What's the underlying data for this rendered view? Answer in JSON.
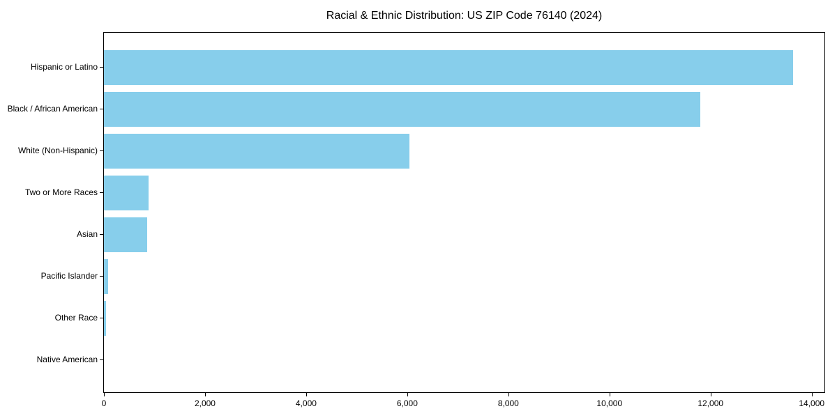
{
  "chart_data": {
    "type": "bar",
    "orientation": "horizontal",
    "title": "Racial & Ethnic Distribution: US ZIP Code 76140 (2024)",
    "categories": [
      "Hispanic or Latino",
      "Black / African American",
      "White (Non-Hispanic)",
      "Two or More Races",
      "Asian",
      "Pacific Islander",
      "Other Race",
      "Native American"
    ],
    "values": [
      13630,
      11790,
      6050,
      880,
      850,
      80,
      45,
      0
    ],
    "xlabel": "",
    "ylabel": "",
    "xlim": [
      0,
      14280
    ],
    "x_ticks": [
      0,
      2000,
      4000,
      6000,
      8000,
      10000,
      12000,
      14000
    ],
    "x_tick_labels": [
      "0",
      "2,000",
      "4,000",
      "6,000",
      "8,000",
      "10,000",
      "12,000",
      "14,000"
    ],
    "bar_color": "#87CEEB",
    "axis_color": "#000000",
    "text_color": "#000000",
    "grid": false,
    "legend": null
  }
}
